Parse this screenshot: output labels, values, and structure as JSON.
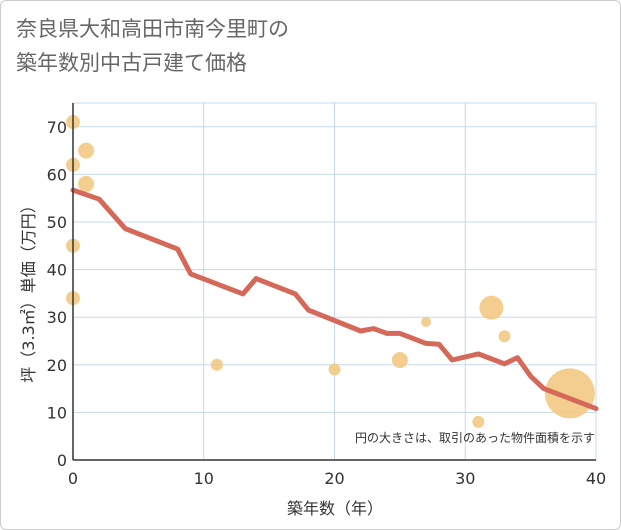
{
  "chart_data": {
    "type": "scatter",
    "title_line1": "奈良県大和高田市南今里町の",
    "title_line2": "築年数別中古戸建て価格",
    "xlabel": "築年数（年）",
    "ylabel": "坪（3.3㎡）単価（万円）",
    "xlim": [
      0,
      40
    ],
    "ylim": [
      0,
      75
    ],
    "x_ticks": [
      "0",
      "10",
      "20",
      "30",
      "40"
    ],
    "y_ticks": [
      "0",
      "10",
      "20",
      "30",
      "40",
      "50",
      "60",
      "70"
    ],
    "note": "円の大きさは、取引のあった物件面積を示す",
    "colors": {
      "bubble": "#f3c77f",
      "line": "#d4695a",
      "grid": "#c8d8e8",
      "axis": "#333333"
    },
    "scatter": [
      {
        "x": 0,
        "y": 71,
        "r": 7
      },
      {
        "x": 0,
        "y": 62,
        "r": 7
      },
      {
        "x": 0,
        "y": 45,
        "r": 7
      },
      {
        "x": 0,
        "y": 34,
        "r": 7
      },
      {
        "x": 1,
        "y": 65,
        "r": 8
      },
      {
        "x": 1,
        "y": 58,
        "r": 8
      },
      {
        "x": 11,
        "y": 20,
        "r": 6
      },
      {
        "x": 20,
        "y": 19,
        "r": 6
      },
      {
        "x": 25,
        "y": 21,
        "r": 8
      },
      {
        "x": 27,
        "y": 29,
        "r": 5
      },
      {
        "x": 31,
        "y": 8,
        "r": 6
      },
      {
        "x": 32,
        "y": 32,
        "r": 12
      },
      {
        "x": 33,
        "y": 26,
        "r": 6
      },
      {
        "x": 38,
        "y": 14,
        "r": 25
      }
    ],
    "trend": [
      {
        "x": 0,
        "y": 56.7
      },
      {
        "x": 2,
        "y": 54.8
      },
      {
        "x": 4,
        "y": 48.6
      },
      {
        "x": 8,
        "y": 44.3
      },
      {
        "x": 9,
        "y": 39.1
      },
      {
        "x": 13,
        "y": 34.9
      },
      {
        "x": 14,
        "y": 38.1
      },
      {
        "x": 17,
        "y": 34.9
      },
      {
        "x": 18,
        "y": 31.5
      },
      {
        "x": 22,
        "y": 27.1
      },
      {
        "x": 23,
        "y": 27.6
      },
      {
        "x": 24,
        "y": 26.6
      },
      {
        "x": 25,
        "y": 26.6
      },
      {
        "x": 27,
        "y": 24.5
      },
      {
        "x": 28,
        "y": 24.3
      },
      {
        "x": 29,
        "y": 21.0
      },
      {
        "x": 31,
        "y": 22.3
      },
      {
        "x": 33,
        "y": 20.2
      },
      {
        "x": 34,
        "y": 21.5
      },
      {
        "x": 35,
        "y": 17.6
      },
      {
        "x": 36,
        "y": 15.0
      },
      {
        "x": 40,
        "y": 10.8
      }
    ]
  }
}
